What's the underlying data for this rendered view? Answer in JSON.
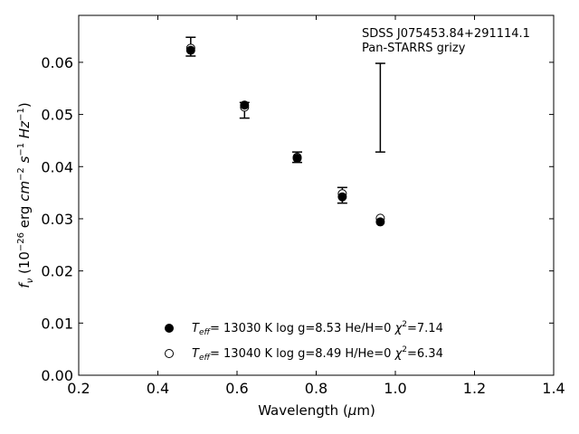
{
  "chart_data": {
    "type": "scatter",
    "xlabel": "Wavelength (μm)",
    "ylabel": "f_ν (10^-26 erg cm^-2 s^-1 Hz^-1)",
    "xlim": [
      0.2,
      1.4
    ],
    "ylim": [
      0.0,
      0.069
    ],
    "xticks": [
      "0.2",
      "0.4",
      "0.6",
      "0.8",
      "1.0",
      "1.2",
      "1.4"
    ],
    "yticks": [
      "0.00",
      "0.01",
      "0.02",
      "0.03",
      "0.04",
      "0.05",
      "0.06"
    ],
    "annotations": [
      "SDSS J075453.84+291114.1",
      "Pan-STARRS grizy"
    ],
    "grid": false,
    "legend_position": "lower-center",
    "observed": {
      "x": [
        0.483,
        0.619,
        0.752,
        0.866,
        0.962
      ],
      "y": [
        0.063,
        0.0508,
        0.0418,
        0.0345,
        0.0513
      ],
      "yerr": [
        0.0018,
        0.0015,
        0.001,
        0.0015,
        0.0085
      ]
    },
    "series": [
      {
        "name": "T_eff= 13030 K  log g=8.53  He/H=0  χ²=7.14",
        "marker": "filled-circle",
        "x": [
          0.483,
          0.619,
          0.752,
          0.866,
          0.962
        ],
        "y": [
          0.0623,
          0.0518,
          0.0416,
          0.0342,
          0.0294
        ]
      },
      {
        "name": "T_eff= 13040 K  log g=8.49  H/He=0  χ²=6.34",
        "marker": "open-circle",
        "x": [
          0.483,
          0.619,
          0.752,
          0.866,
          0.962
        ],
        "y": [
          0.0627,
          0.0514,
          0.0418,
          0.0348,
          0.0301
        ]
      }
    ]
  }
}
